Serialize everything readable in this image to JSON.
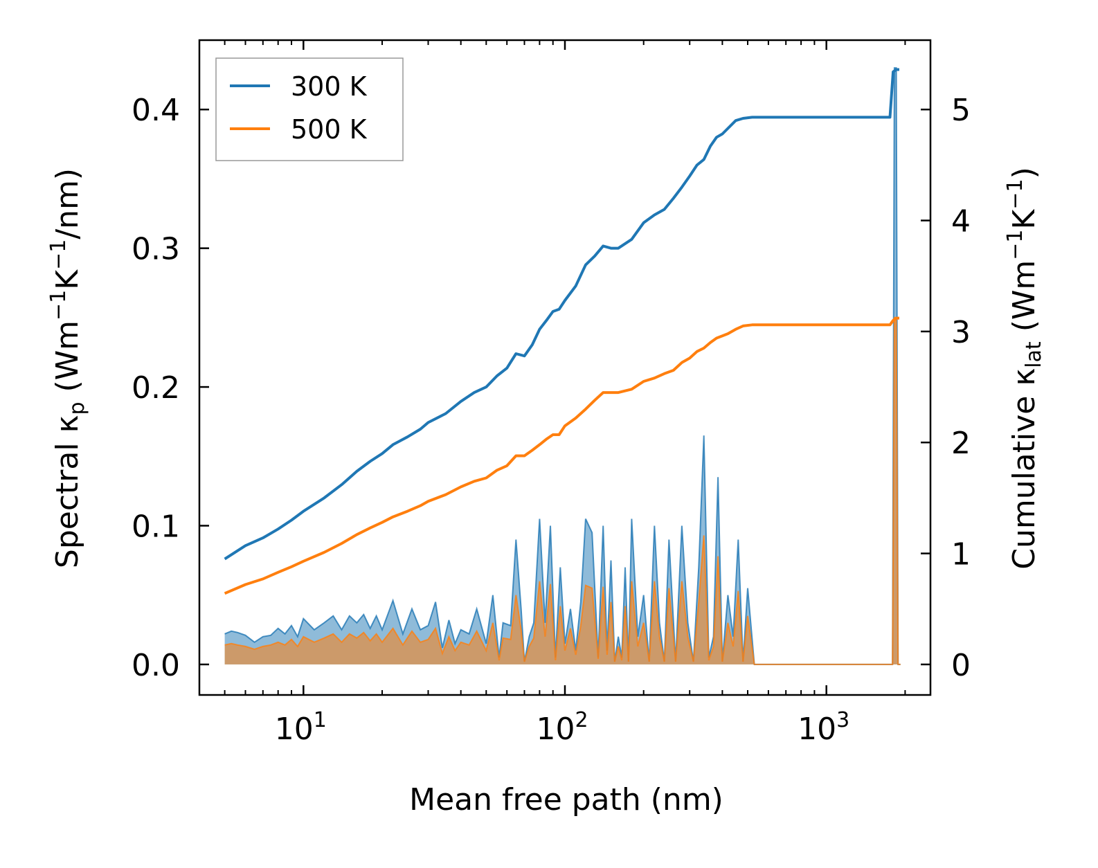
{
  "chart_data": {
    "type": "line",
    "xscale": "log",
    "xlim": [
      4.0,
      2500
    ],
    "ylim_left": [
      -0.022,
      0.45
    ],
    "ylim_right": [
      -0.275,
      5.625
    ],
    "xlabel": "Mean free path (nm)",
    "ylabel_left": {
      "prefix": "Spectral κ",
      "sub": "p",
      "mid": " (Wm",
      "sup1": "−1",
      "k": "K",
      "sup2": "−1",
      "tail": "/nm)"
    },
    "ylabel_right": {
      "prefix": "Cumulative κ",
      "sub": "lat",
      "mid": " (Wm",
      "sup1": "−1",
      "k": "K",
      "sup2": "−1",
      "tail": ")"
    },
    "x_ticks": [
      {
        "value": 10,
        "base": "10",
        "exp": "1"
      },
      {
        "value": 100,
        "base": "10",
        "exp": "2"
      },
      {
        "value": 1000,
        "base": "10",
        "exp": "3"
      }
    ],
    "y_left_ticks": [
      {
        "value": 0.0,
        "label": "0.0"
      },
      {
        "value": 0.1,
        "label": "0.1"
      },
      {
        "value": 0.2,
        "label": "0.2"
      },
      {
        "value": 0.3,
        "label": "0.3"
      },
      {
        "value": 0.4,
        "label": "0.4"
      }
    ],
    "y_right_ticks": [
      {
        "value": 0,
        "label": "0"
      },
      {
        "value": 1,
        "label": "1"
      },
      {
        "value": 2,
        "label": "2"
      },
      {
        "value": 3,
        "label": "3"
      },
      {
        "value": 4,
        "label": "4"
      },
      {
        "value": 5,
        "label": "5"
      }
    ],
    "legend": {
      "location": "upper-left",
      "entries": [
        {
          "label": "300 K",
          "color": "#1f77b4"
        },
        {
          "label": "500 K",
          "color": "#ff7f0e"
        }
      ]
    },
    "series": [
      {
        "name": "300 K",
        "color": "#1f77b4",
        "cumulative": {
          "x": [
            5,
            6,
            7,
            8,
            9,
            10,
            12,
            14,
            16,
            18,
            20,
            22,
            25,
            28,
            30,
            35,
            40,
            45,
            50,
            55,
            60,
            65,
            70,
            75,
            80,
            85,
            90,
            95,
            100,
            110,
            120,
            130,
            140,
            150,
            160,
            180,
            200,
            220,
            240,
            260,
            280,
            300,
            320,
            340,
            360,
            380,
            400,
            420,
            450,
            480,
            520,
            560,
            1750,
            1800,
            1850,
            1900
          ],
          "y": [
            0.95,
            1.07,
            1.14,
            1.22,
            1.3,
            1.38,
            1.5,
            1.62,
            1.74,
            1.83,
            1.9,
            1.98,
            2.05,
            2.12,
            2.18,
            2.26,
            2.37,
            2.45,
            2.5,
            2.6,
            2.67,
            2.8,
            2.78,
            2.88,
            3.02,
            3.1,
            3.18,
            3.2,
            3.28,
            3.41,
            3.6,
            3.68,
            3.77,
            3.75,
            3.75,
            3.83,
            3.98,
            4.05,
            4.1,
            4.2,
            4.3,
            4.4,
            4.5,
            4.55,
            4.67,
            4.75,
            4.78,
            4.83,
            4.9,
            4.92,
            4.93,
            4.93,
            4.93,
            5.34,
            5.36,
            5.36
          ]
        },
        "spectral": {
          "x": [
            5,
            5.3,
            5.6,
            6,
            6.5,
            7,
            7.5,
            8,
            8.5,
            9,
            9.5,
            10,
            11,
            12,
            13,
            14,
            15,
            16,
            17,
            18,
            19,
            20,
            22,
            24,
            26,
            28,
            30,
            32,
            34,
            36,
            38,
            40,
            43,
            46,
            50,
            53,
            56,
            58,
            62,
            65,
            68,
            70,
            73,
            76,
            80,
            84,
            88,
            92,
            96,
            100,
            105,
            110,
            115,
            120,
            127,
            134,
            140,
            145,
            150,
            155,
            160,
            165,
            170,
            175,
            180,
            190,
            200,
            210,
            220,
            230,
            240,
            250,
            265,
            280,
            295,
            310,
            325,
            340,
            355,
            370,
            385,
            400,
            420,
            440,
            460,
            480,
            500,
            530,
            560,
            600,
            700,
            1000,
            1500,
            1750,
            1790,
            1820,
            1850,
            1880,
            1920
          ],
          "y": [
            0.022,
            0.024,
            0.023,
            0.021,
            0.016,
            0.02,
            0.021,
            0.026,
            0.022,
            0.028,
            0.02,
            0.033,
            0.025,
            0.03,
            0.035,
            0.025,
            0.035,
            0.03,
            0.036,
            0.026,
            0.035,
            0.025,
            0.046,
            0.022,
            0.04,
            0.025,
            0.028,
            0.045,
            0.012,
            0.032,
            0.015,
            0.025,
            0.022,
            0.04,
            0.015,
            0.05,
            0.005,
            0.03,
            0.028,
            0.09,
            0.04,
            0.002,
            0.02,
            0.03,
            0.105,
            0.03,
            0.1,
            0.005,
            0.07,
            0.015,
            0.04,
            0.01,
            0.045,
            0.105,
            0.095,
            0.005,
            0.1,
            0.01,
            0.075,
            0.002,
            0.02,
            0.005,
            0.07,
            0.002,
            0.105,
            0.02,
            0.05,
            0.002,
            0.1,
            0.03,
            0.002,
            0.09,
            0.002,
            0.1,
            0.03,
            0.002,
            0.07,
            0.165,
            0.005,
            0.02,
            0.135,
            0.002,
            0.05,
            0.02,
            0.09,
            0.002,
            0.055,
            0.0,
            0.0,
            0.0,
            0.0,
            0.0,
            0.0,
            0.0,
            0.0,
            0.43,
            0.43,
            0.0,
            0.0
          ]
        }
      },
      {
        "name": "500 K",
        "color": "#ff7f0e",
        "cumulative": {
          "x": [
            5,
            6,
            7,
            8,
            9,
            10,
            12,
            14,
            16,
            18,
            20,
            22,
            25,
            28,
            30,
            35,
            40,
            45,
            50,
            55,
            60,
            65,
            70,
            75,
            80,
            85,
            90,
            95,
            100,
            110,
            120,
            130,
            140,
            150,
            160,
            180,
            200,
            220,
            240,
            260,
            280,
            300,
            320,
            340,
            360,
            380,
            400,
            420,
            450,
            480,
            520,
            560,
            1750,
            1800,
            1850,
            1900
          ],
          "y": [
            0.64,
            0.72,
            0.77,
            0.83,
            0.88,
            0.93,
            1.01,
            1.09,
            1.17,
            1.23,
            1.28,
            1.33,
            1.38,
            1.43,
            1.47,
            1.53,
            1.6,
            1.65,
            1.68,
            1.75,
            1.79,
            1.88,
            1.88,
            1.93,
            1.98,
            2.03,
            2.07,
            2.07,
            2.15,
            2.22,
            2.3,
            2.38,
            2.45,
            2.45,
            2.45,
            2.48,
            2.55,
            2.58,
            2.62,
            2.65,
            2.72,
            2.76,
            2.82,
            2.85,
            2.9,
            2.94,
            2.96,
            2.98,
            3.02,
            3.05,
            3.06,
            3.06,
            3.06,
            3.1,
            3.12,
            3.12
          ]
        },
        "spectral": {
          "x": [
            5,
            5.3,
            5.6,
            6,
            6.5,
            7,
            7.5,
            8,
            8.5,
            9,
            9.5,
            10,
            11,
            12,
            13,
            14,
            15,
            16,
            17,
            18,
            19,
            20,
            22,
            24,
            26,
            28,
            30,
            32,
            34,
            36,
            38,
            40,
            43,
            46,
            50,
            53,
            56,
            58,
            62,
            65,
            68,
            70,
            73,
            76,
            80,
            84,
            88,
            92,
            96,
            100,
            105,
            110,
            115,
            120,
            127,
            134,
            140,
            145,
            150,
            155,
            160,
            165,
            170,
            175,
            180,
            190,
            200,
            210,
            220,
            230,
            240,
            250,
            265,
            280,
            295,
            310,
            325,
            340,
            355,
            370,
            385,
            400,
            420,
            440,
            460,
            480,
            500,
            530,
            560,
            600,
            700,
            1000,
            1500,
            1750,
            1790,
            1820,
            1850,
            1880,
            1920
          ],
          "y": [
            0.014,
            0.015,
            0.014,
            0.013,
            0.011,
            0.013,
            0.014,
            0.016,
            0.014,
            0.018,
            0.013,
            0.02,
            0.016,
            0.019,
            0.022,
            0.016,
            0.022,
            0.019,
            0.023,
            0.017,
            0.022,
            0.016,
            0.026,
            0.014,
            0.024,
            0.016,
            0.018,
            0.026,
            0.008,
            0.02,
            0.01,
            0.016,
            0.014,
            0.024,
            0.01,
            0.03,
            0.003,
            0.019,
            0.018,
            0.05,
            0.025,
            0.002,
            0.013,
            0.019,
            0.06,
            0.02,
            0.058,
            0.003,
            0.042,
            0.01,
            0.026,
            0.007,
            0.028,
            0.057,
            0.055,
            0.004,
            0.056,
            0.007,
            0.045,
            0.002,
            0.013,
            0.003,
            0.042,
            0.002,
            0.06,
            0.013,
            0.03,
            0.002,
            0.06,
            0.02,
            0.002,
            0.055,
            0.002,
            0.06,
            0.02,
            0.002,
            0.045,
            0.093,
            0.003,
            0.013,
            0.078,
            0.002,
            0.03,
            0.013,
            0.053,
            0.002,
            0.035,
            0.0,
            0.0,
            0.0,
            0.0,
            0.0,
            0.0,
            0.0,
            0.0,
            0.25,
            0.25,
            0.0,
            0.0
          ]
        }
      }
    ]
  }
}
